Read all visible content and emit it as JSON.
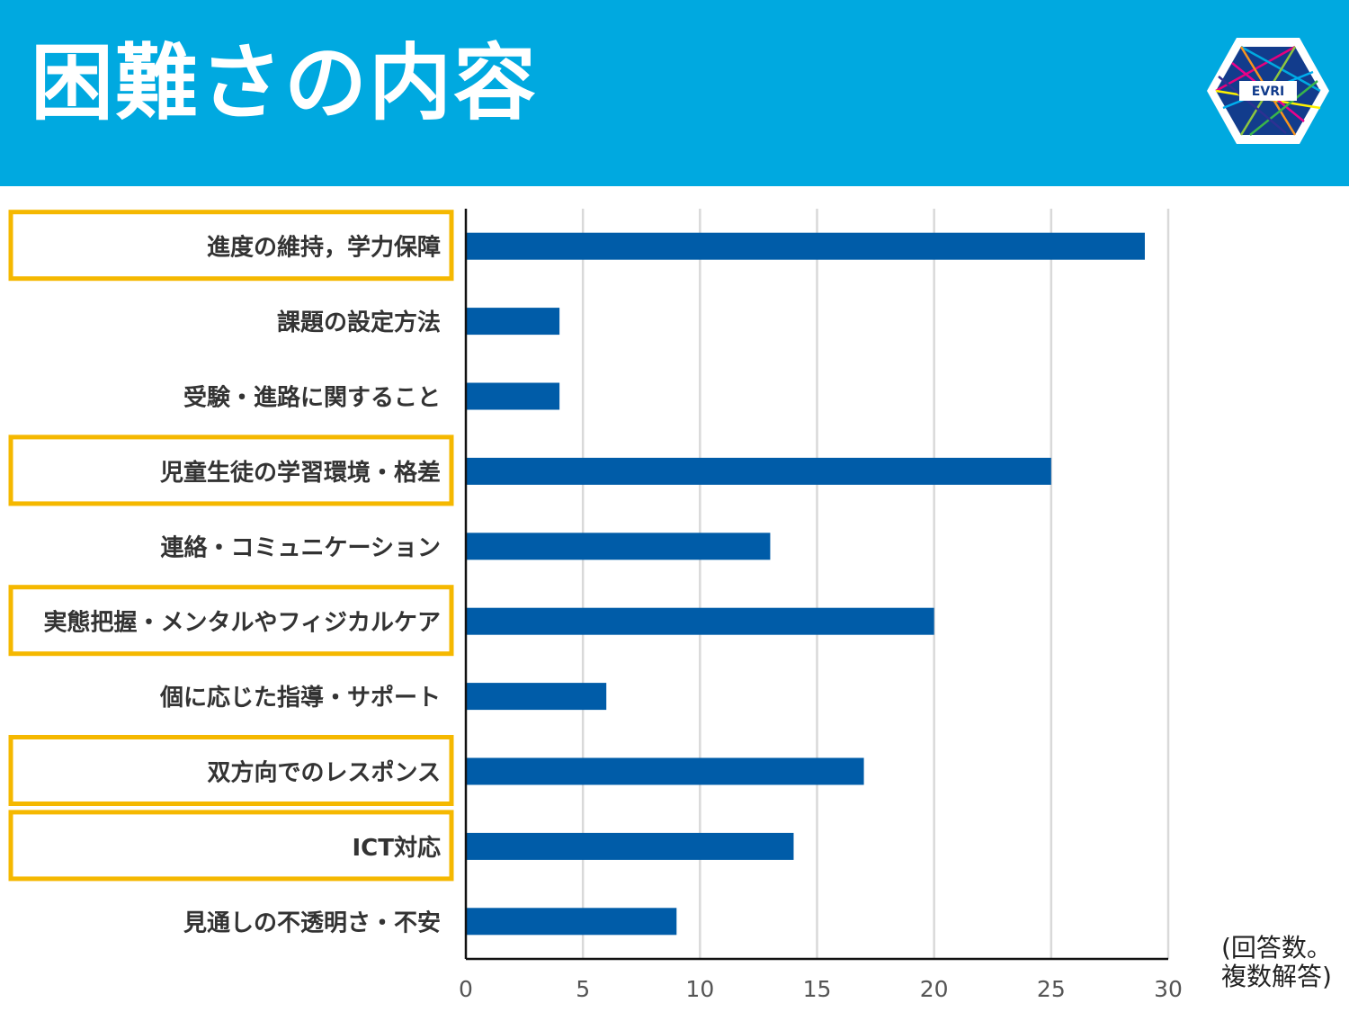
{
  "header": {
    "title": "困難さの内容",
    "logo_text": "EVRI"
  },
  "note": {
    "line1": "(回答数。",
    "line2": "複数解答)"
  },
  "colors": {
    "header_bg": "#00a9e0",
    "bar": "#005ca8",
    "highlight": "#f5b800",
    "grid": "#d9d9d9"
  },
  "chart_data": {
    "type": "bar",
    "orientation": "horizontal",
    "categories": [
      "進度の維持，学力保障",
      "課題の設定方法",
      "受験・進路に関すること",
      "児童生徒の学習環境・格差",
      "連絡・コミュニケーション",
      "実態把握・メンタルやフィジカルケア",
      "個に応じた指導・サポート",
      "双方向でのレスポンス",
      "ICT対応",
      "見通しの不透明さ・不安"
    ],
    "values": [
      29,
      4,
      4,
      25,
      13,
      20,
      6,
      17,
      14,
      9
    ],
    "highlighted": [
      true,
      false,
      false,
      true,
      false,
      true,
      false,
      true,
      true,
      false
    ],
    "xlim": [
      0,
      30
    ],
    "xticks": [
      0,
      5,
      10,
      15,
      20,
      25,
      30
    ],
    "grid": true
  }
}
